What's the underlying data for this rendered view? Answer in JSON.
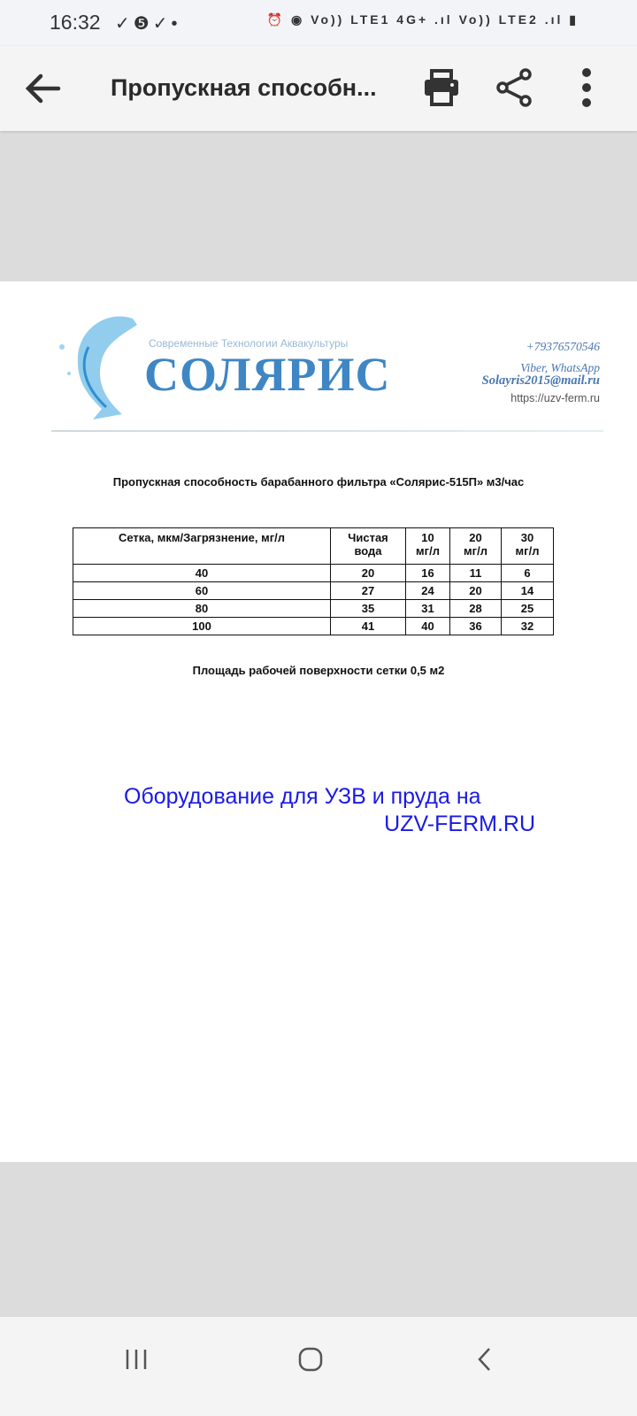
{
  "status_bar": {
    "time": "16:32",
    "left_icons": [
      "check-circle-icon",
      "five-badge-icon",
      "check-circle-icon",
      "dot-icon"
    ],
    "right_text": "Vo)) LTE1 4G+ .ıl Vo)) LTE2 .ıl"
  },
  "toolbar": {
    "title": "Пропускная способн..."
  },
  "document": {
    "tagline": "Современные Технологии Аквакультуры",
    "brand": "СОЛЯРИС",
    "phone": "+79376570546",
    "messengers": "Viber, WhatsApp",
    "email": "Solayris2015@mail.ru",
    "website": "https://uzv-ferm.ru",
    "title": "Пропускная способность барабанного фильтра «Солярис-515П» м3/час",
    "table": {
      "headers": [
        [
          "Сетка, мкм/Загрязнение, мг/л",
          ""
        ],
        [
          "Чистая",
          "вода"
        ],
        [
          "10",
          "мг/л"
        ],
        [
          "20",
          "мг/л"
        ],
        [
          "30",
          "мг/л"
        ]
      ],
      "rows": [
        [
          "40",
          "20",
          "16",
          "11",
          "6"
        ],
        [
          "60",
          "27",
          "24",
          "20",
          "14"
        ],
        [
          "80",
          "35",
          "31",
          "28",
          "25"
        ],
        [
          "100",
          "41",
          "40",
          "36",
          "32"
        ]
      ]
    },
    "area_note": "Площадь рабочей поверхности сетки 0,5 м2",
    "promo_line1": "Оборудование для УЗВ и пруда на",
    "promo_line2": "UZV-FERM.RU"
  },
  "colors": {
    "brand": "#3f86c4",
    "promo": "#1a1ae6"
  }
}
